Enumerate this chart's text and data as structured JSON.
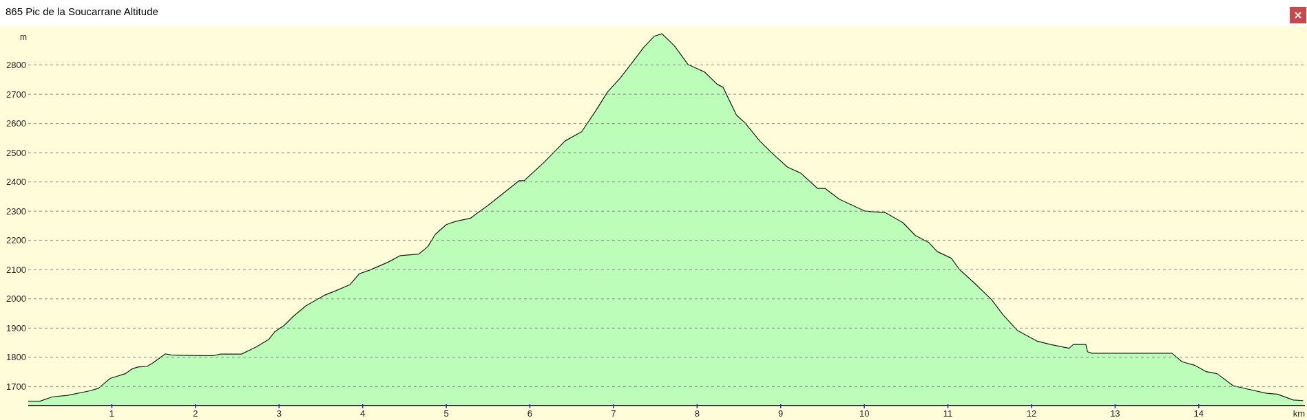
{
  "chart_data": {
    "type": "area",
    "title": "865 Pic de la Soucarrane Altitude",
    "xlabel": "km",
    "ylabel": "m",
    "x": [
      0,
      0.14,
      0.29,
      0.47,
      0.73,
      0.84,
      0.98,
      1.16,
      1.24,
      1.31,
      1.42,
      1.49,
      1.64,
      1.71,
      2.08,
      2.22,
      2.3,
      2.55,
      2.73,
      2.88,
      2.95,
      3.06,
      3.17,
      3.32,
      3.54,
      3.68,
      3.85,
      3.96,
      4.08,
      4.3,
      4.45,
      4.67,
      4.78,
      4.87,
      5,
      5.11,
      5.29,
      5.36,
      5.5,
      5.87,
      5.93,
      6.17,
      6.42,
      6.62,
      6.78,
      6.93,
      7.08,
      7.22,
      7.36,
      7.49,
      7.58,
      7.73,
      7.89,
      8.09,
      8.24,
      8.31,
      8.47,
      8.57,
      8.75,
      8.88,
      9.08,
      9.24,
      9.44,
      9.53,
      9.7,
      10.01,
      10.25,
      10.46,
      10.61,
      10.77,
      10.87,
      11.04,
      11.14,
      11.31,
      11.52,
      11.66,
      11.83,
      12.07,
      12.21,
      12.45,
      12.5,
      12.65,
      12.67,
      12.72,
      13,
      13.68,
      13.8,
      13.95,
      14.09,
      14.22,
      14.41,
      14.53,
      14.81,
      14.94,
      15.13,
      15.25
    ],
    "series": [
      {
        "color": "#bbfdb9",
        "values": [
          1650,
          1650,
          1665,
          1670,
          1685,
          1694,
          1728,
          1744,
          1760,
          1767,
          1769,
          1781,
          1812,
          1808,
          1806,
          1806,
          1811,
          1811,
          1836,
          1862,
          1888,
          1909,
          1940,
          1976,
          2012,
          2028,
          2049,
          2086,
          2098,
          2125,
          2148,
          2153,
          2179,
          2221,
          2254,
          2265,
          2276,
          2291,
          2320,
          2404,
          2404,
          2467,
          2540,
          2572,
          2640,
          2708,
          2755,
          2807,
          2860,
          2899,
          2907,
          2865,
          2802,
          2776,
          2734,
          2724,
          2629,
          2603,
          2540,
          2503,
          2451,
          2430,
          2378,
          2378,
          2341,
          2300,
          2295,
          2261,
          2217,
          2193,
          2162,
          2139,
          2100,
          2056,
          1998,
          1945,
          1892,
          1855,
          1845,
          1831,
          1844,
          1844,
          1819,
          1814,
          1814,
          1814,
          1785,
          1773,
          1751,
          1744,
          1703,
          1695,
          1677,
          1674,
          1654,
          1652
        ]
      }
    ],
    "xlim": [
      0,
      15.27
    ],
    "ylim": [
      1635,
      2933
    ],
    "xticks": [
      1,
      2,
      3,
      4,
      5,
      6,
      7,
      8,
      9,
      10,
      11,
      12,
      13,
      14
    ],
    "yticks": [
      1700,
      1800,
      1900,
      2000,
      2100,
      2200,
      2300,
      2400,
      2500,
      2600,
      2700,
      2800
    ],
    "grid": "y"
  }
}
